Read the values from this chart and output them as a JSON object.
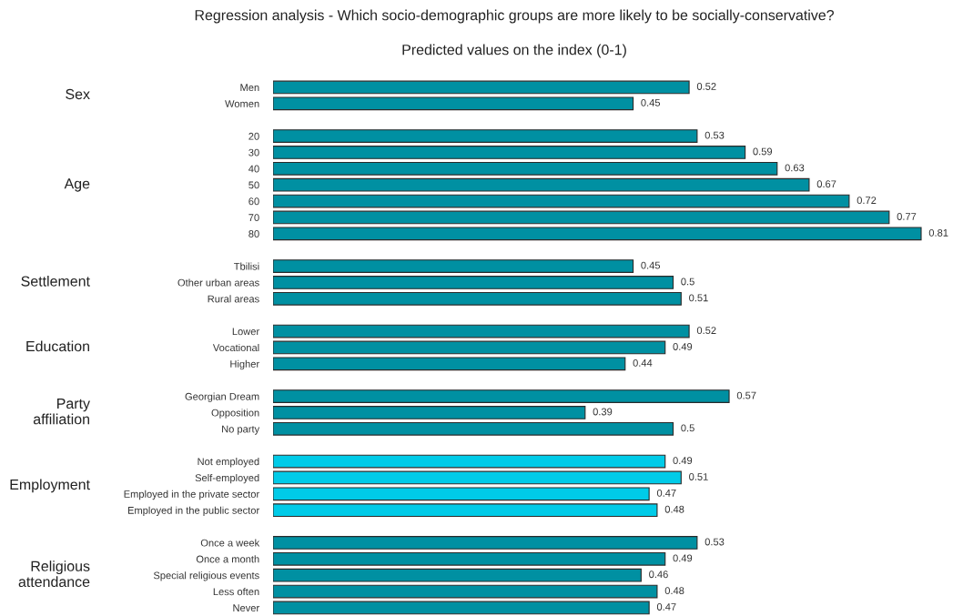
{
  "chart_data": [
    {
      "type": "bar",
      "orientation": "horizontal",
      "title": "Regression analysis - Which socio-demographic groups are more likely to be socially-conservative?",
      "subtitle": "Predicted values on the index (0-1)",
      "ylabel": "Sex",
      "categories": [
        "Men",
        "Women"
      ],
      "values": [
        0.52,
        0.45
      ],
      "color": "#0090a2",
      "data_labels": true,
      "tick_labels": "y"
    },
    {
      "type": "bar",
      "orientation": "horizontal",
      "ylabel": "Age",
      "categories": [
        "20",
        "30",
        "40",
        "50",
        "60",
        "70",
        "80"
      ],
      "values": [
        0.53,
        0.59,
        0.63,
        0.67,
        0.72,
        0.77,
        0.81
      ],
      "color": "#0090a2",
      "data_labels": true,
      "tick_labels": "y"
    },
    {
      "type": "bar",
      "orientation": "horizontal",
      "ylabel": "Settlement",
      "categories": [
        "Tbilisi",
        "Other urban areas",
        "Rural areas"
      ],
      "values": [
        0.45,
        0.5,
        0.51
      ],
      "color": "#0090a2",
      "data_labels": true,
      "tick_labels": "y"
    },
    {
      "type": "bar",
      "orientation": "horizontal",
      "ylabel": "Education",
      "categories": [
        "Lower",
        "Vocational",
        "Higher"
      ],
      "values": [
        0.52,
        0.49,
        0.44
      ],
      "color": "#0090a2",
      "data_labels": true,
      "tick_labels": "y"
    },
    {
      "type": "bar",
      "orientation": "horizontal",
      "ylabel": "Party\naffiliation",
      "categories": [
        "Georgian Dream",
        "Opposition",
        "No party"
      ],
      "values": [
        0.57,
        0.39,
        0.5
      ],
      "color": "#0090a2",
      "data_labels": true,
      "tick_labels": "y"
    },
    {
      "type": "bar",
      "orientation": "horizontal",
      "ylabel": "Employment",
      "categories": [
        "Not employed",
        "Self-employed",
        "Employed in the private sector",
        "Employed in the public sector"
      ],
      "values": [
        0.49,
        0.51,
        0.47,
        0.48
      ],
      "color": "#00cbe8",
      "data_labels": true,
      "tick_labels": "y"
    },
    {
      "type": "bar",
      "orientation": "horizontal",
      "ylabel": "Religious\nattendance",
      "categories": [
        "Once a week",
        "Once a month",
        "Special religious events",
        "Less often",
        "Never"
      ],
      "values": [
        0.53,
        0.49,
        0.46,
        0.48,
        0.47
      ],
      "color": "#0090a2",
      "data_labels": true,
      "tick_labels": "y"
    }
  ]
}
